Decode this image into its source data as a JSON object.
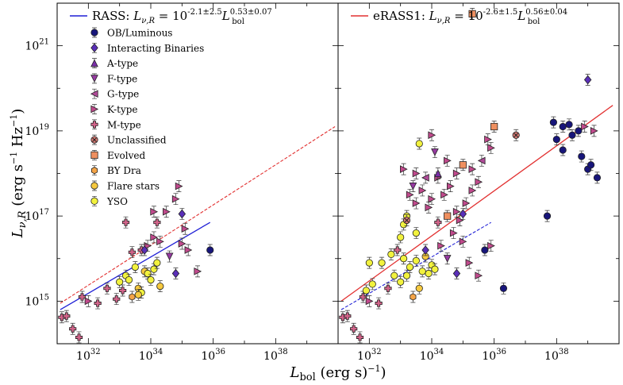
{
  "chart_data": {
    "type": "scatter",
    "xlabel": "L_bol (erg s^-1)",
    "ylabel": "L_ν,R (erg s^-1 Hz^-1)",
    "xscale": "log",
    "yscale": "log",
    "xlim": [
      1e+31,
      1e+40
    ],
    "ylim": [
      100000000000000.0,
      1e+22
    ],
    "x_ticks": [
      "10^32",
      "10^34",
      "10^36",
      "10^38"
    ],
    "y_ticks": [
      "10^15",
      "10^17",
      "10^19",
      "10^21"
    ],
    "legend_placement": "upper-left",
    "categories": [
      {
        "name": "OB/Luminous",
        "marker": "circle",
        "color": "#17157a"
      },
      {
        "name": "Interacting Binaries",
        "marker": "diamond",
        "color": "#5a2fb8"
      },
      {
        "name": "A-type",
        "marker": "triangle-up",
        "color": "#7a2ea8"
      },
      {
        "name": "F-type",
        "marker": "triangle-down",
        "color": "#963aa0"
      },
      {
        "name": "G-type",
        "marker": "triangle-left",
        "color": "#b04a98"
      },
      {
        "name": "K-type",
        "marker": "triangle-right",
        "color": "#c04a8c"
      },
      {
        "name": "M-type",
        "marker": "plus",
        "color": "#d2648a"
      },
      {
        "name": "Unclassified",
        "marker": "x",
        "color": "#d87a74"
      },
      {
        "name": "Evolved",
        "marker": "square",
        "color": "#ef9060"
      },
      {
        "name": "BY Dra",
        "marker": "hexagon",
        "color": "#f4a447"
      },
      {
        "name": "Flare stars",
        "marker": "circle",
        "color": "#f6c93f"
      },
      {
        "name": "YSO",
        "marker": "circle",
        "color": "#f2f23e"
      }
    ],
    "panels": [
      {
        "label": "RASS",
        "fit_equation": "RASS: L_ν,R = 10^(-2.1±2.5) L_bol^(0.53±0.07)",
        "fit_color": "#1f1fd6",
        "fit_line": [
          [
            31.1,
            14.8
          ],
          [
            35.9,
            16.85
          ]
        ],
        "comparison_line": [
          [
            31.1,
            14.95
          ],
          [
            39.9,
            19.1
          ]
        ],
        "comparison_color": "#e23030",
        "points": [
          {
            "x": 31.15,
            "y": 14.62,
            "c": 6
          },
          {
            "x": 31.3,
            "y": 14.65,
            "c": 6
          },
          {
            "x": 31.5,
            "y": 14.35,
            "c": 6
          },
          {
            "x": 31.7,
            "y": 14.15,
            "c": 6
          },
          {
            "x": 32.5,
            "y": 13.85,
            "c": 6
          },
          {
            "x": 31.8,
            "y": 15.1,
            "c": 6
          },
          {
            "x": 32.0,
            "y": 15.0,
            "c": 5
          },
          {
            "x": 32.3,
            "y": 14.95,
            "c": 6
          },
          {
            "x": 32.6,
            "y": 15.3,
            "c": 6
          },
          {
            "x": 33.0,
            "y": 15.45,
            "c": 11
          },
          {
            "x": 32.9,
            "y": 15.05,
            "c": 6
          },
          {
            "x": 33.1,
            "y": 15.25,
            "c": 6
          },
          {
            "x": 33.2,
            "y": 15.6,
            "c": 11
          },
          {
            "x": 33.3,
            "y": 15.5,
            "c": 11
          },
          {
            "x": 33.4,
            "y": 15.1,
            "c": 9
          },
          {
            "x": 33.6,
            "y": 15.3,
            "c": 10
          },
          {
            "x": 33.7,
            "y": 15.2,
            "c": 11
          },
          {
            "x": 33.5,
            "y": 15.8,
            "c": 11
          },
          {
            "x": 33.8,
            "y": 15.7,
            "c": 10
          },
          {
            "x": 33.9,
            "y": 15.65,
            "c": 11
          },
          {
            "x": 34.0,
            "y": 15.5,
            "c": 11
          },
          {
            "x": 34.1,
            "y": 15.75,
            "c": 11
          },
          {
            "x": 34.2,
            "y": 15.9,
            "c": 11
          },
          {
            "x": 34.3,
            "y": 15.35,
            "c": 10
          },
          {
            "x": 33.6,
            "y": 15.15,
            "c": 10
          },
          {
            "x": 33.4,
            "y": 16.15,
            "c": 6
          },
          {
            "x": 33.7,
            "y": 16.2,
            "c": 6
          },
          {
            "x": 33.9,
            "y": 16.3,
            "c": 5
          },
          {
            "x": 34.1,
            "y": 16.5,
            "c": 5
          },
          {
            "x": 34.3,
            "y": 16.4,
            "c": 5
          },
          {
            "x": 35.0,
            "y": 16.35,
            "c": 5
          },
          {
            "x": 35.2,
            "y": 16.2,
            "c": 5
          },
          {
            "x": 34.6,
            "y": 16.05,
            "c": 3
          },
          {
            "x": 33.2,
            "y": 16.85,
            "c": 6
          },
          {
            "x": 34.2,
            "y": 16.85,
            "c": 6
          },
          {
            "x": 33.8,
            "y": 16.2,
            "c": 1
          },
          {
            "x": 34.8,
            "y": 15.65,
            "c": 1
          },
          {
            "x": 35.1,
            "y": 16.7,
            "c": 5
          },
          {
            "x": 35.9,
            "y": 16.2,
            "c": 0
          },
          {
            "x": 35.5,
            "y": 15.7,
            "c": 5
          },
          {
            "x": 34.5,
            "y": 17.1,
            "c": 5
          },
          {
            "x": 34.8,
            "y": 17.4,
            "c": 5
          },
          {
            "x": 35.0,
            "y": 17.05,
            "c": 1
          },
          {
            "x": 34.9,
            "y": 17.7,
            "c": 5
          },
          {
            "x": 34.1,
            "y": 17.1,
            "c": 5
          }
        ]
      },
      {
        "label": "eRASS1",
        "fit_equation": "eRASS1: L_ν,R = 10^(-2.6±1.5) L_bol^(0.56±0.04)",
        "fit_color": "#e23030",
        "fit_line": [
          [
            31.1,
            15.0
          ],
          [
            39.8,
            19.6
          ]
        ],
        "comparison_line": [
          [
            31.1,
            14.8
          ],
          [
            35.9,
            16.85
          ]
        ],
        "comparison_color": "#1f1fd6",
        "points": [
          {
            "x": 31.15,
            "y": 14.62,
            "c": 6
          },
          {
            "x": 31.3,
            "y": 14.65,
            "c": 6
          },
          {
            "x": 31.5,
            "y": 14.35,
            "c": 6
          },
          {
            "x": 31.7,
            "y": 14.15,
            "c": 6
          },
          {
            "x": 32.5,
            "y": 13.85,
            "c": 6
          },
          {
            "x": 31.8,
            "y": 15.1,
            "c": 6
          },
          {
            "x": 32.0,
            "y": 15.0,
            "c": 5
          },
          {
            "x": 32.3,
            "y": 14.95,
            "c": 6
          },
          {
            "x": 32.6,
            "y": 15.3,
            "c": 6
          },
          {
            "x": 31.9,
            "y": 15.25,
            "c": 11
          },
          {
            "x": 32.1,
            "y": 15.4,
            "c": 11
          },
          {
            "x": 32.0,
            "y": 15.9,
            "c": 11
          },
          {
            "x": 32.4,
            "y": 15.9,
            "c": 11
          },
          {
            "x": 32.8,
            "y": 15.6,
            "c": 11
          },
          {
            "x": 32.7,
            "y": 16.1,
            "c": 11
          },
          {
            "x": 33.0,
            "y": 15.45,
            "c": 11
          },
          {
            "x": 33.1,
            "y": 16.0,
            "c": 11
          },
          {
            "x": 33.2,
            "y": 15.6,
            "c": 11
          },
          {
            "x": 33.3,
            "y": 15.8,
            "c": 11
          },
          {
            "x": 33.4,
            "y": 15.1,
            "c": 9
          },
          {
            "x": 33.5,
            "y": 15.95,
            "c": 11
          },
          {
            "x": 33.6,
            "y": 15.3,
            "c": 10
          },
          {
            "x": 33.7,
            "y": 15.7,
            "c": 11
          },
          {
            "x": 33.8,
            "y": 16.05,
            "c": 10
          },
          {
            "x": 33.9,
            "y": 15.65,
            "c": 11
          },
          {
            "x": 34.0,
            "y": 15.85,
            "c": 11
          },
          {
            "x": 34.1,
            "y": 15.75,
            "c": 11
          },
          {
            "x": 33.0,
            "y": 16.5,
            "c": 11
          },
          {
            "x": 33.1,
            "y": 16.8,
            "c": 11
          },
          {
            "x": 33.2,
            "y": 17.0,
            "c": 11
          },
          {
            "x": 33.5,
            "y": 16.6,
            "c": 11
          },
          {
            "x": 33.6,
            "y": 18.7,
            "c": 11
          },
          {
            "x": 32.9,
            "y": 16.2,
            "c": 6
          },
          {
            "x": 33.3,
            "y": 17.5,
            "c": 5
          },
          {
            "x": 33.5,
            "y": 17.3,
            "c": 5
          },
          {
            "x": 33.7,
            "y": 17.6,
            "c": 5
          },
          {
            "x": 33.9,
            "y": 17.2,
            "c": 5
          },
          {
            "x": 34.0,
            "y": 17.4,
            "c": 5
          },
          {
            "x": 34.2,
            "y": 17.9,
            "c": 5
          },
          {
            "x": 34.4,
            "y": 17.5,
            "c": 5
          },
          {
            "x": 34.6,
            "y": 17.7,
            "c": 5
          },
          {
            "x": 34.8,
            "y": 17.1,
            "c": 5
          },
          {
            "x": 34.3,
            "y": 16.3,
            "c": 5
          },
          {
            "x": 34.5,
            "y": 16.0,
            "c": 3
          },
          {
            "x": 34.7,
            "y": 16.6,
            "c": 5
          },
          {
            "x": 34.9,
            "y": 16.9,
            "c": 5
          },
          {
            "x": 35.1,
            "y": 17.3,
            "c": 5
          },
          {
            "x": 35.3,
            "y": 17.6,
            "c": 5
          },
          {
            "x": 35.5,
            "y": 17.8,
            "c": 5
          },
          {
            "x": 35.0,
            "y": 16.4,
            "c": 5
          },
          {
            "x": 35.2,
            "y": 15.9,
            "c": 5
          },
          {
            "x": 35.5,
            "y": 15.6,
            "c": 5
          },
          {
            "x": 35.7,
            "y": 16.2,
            "c": 0
          },
          {
            "x": 35.9,
            "y": 16.3,
            "c": 5
          },
          {
            "x": 34.2,
            "y": 18.0,
            "c": 2
          },
          {
            "x": 34.5,
            "y": 18.3,
            "c": 5
          },
          {
            "x": 34.8,
            "y": 18.0,
            "c": 5
          },
          {
            "x": 34.1,
            "y": 18.5,
            "c": 3
          },
          {
            "x": 35.0,
            "y": 18.2,
            "c": 8
          },
          {
            "x": 35.3,
            "y": 18.1,
            "c": 5
          },
          {
            "x": 35.6,
            "y": 18.3,
            "c": 4
          },
          {
            "x": 35.9,
            "y": 18.6,
            "c": 5
          },
          {
            "x": 35.8,
            "y": 18.8,
            "c": 5
          },
          {
            "x": 34.0,
            "y": 18.9,
            "c": 5
          },
          {
            "x": 33.8,
            "y": 17.9,
            "c": 4
          },
          {
            "x": 33.5,
            "y": 18.0,
            "c": 5
          },
          {
            "x": 33.1,
            "y": 18.1,
            "c": 5
          },
          {
            "x": 33.2,
            "y": 16.9,
            "c": 7
          },
          {
            "x": 33.4,
            "y": 17.7,
            "c": 3
          },
          {
            "x": 33.8,
            "y": 16.2,
            "c": 1
          },
          {
            "x": 34.2,
            "y": 16.85,
            "c": 6
          },
          {
            "x": 34.5,
            "y": 17.0,
            "c": 8
          },
          {
            "x": 34.8,
            "y": 15.65,
            "c": 1
          },
          {
            "x": 35.0,
            "y": 17.05,
            "c": 1
          },
          {
            "x": 35.3,
            "y": 21.75,
            "c": 8
          },
          {
            "x": 36.0,
            "y": 19.1,
            "c": 8
          },
          {
            "x": 36.3,
            "y": 15.3,
            "c": 0
          },
          {
            "x": 36.7,
            "y": 18.9,
            "c": 7
          },
          {
            "x": 37.7,
            "y": 17.0,
            "c": 0
          },
          {
            "x": 37.9,
            "y": 19.2,
            "c": 0
          },
          {
            "x": 38.0,
            "y": 18.8,
            "c": 0
          },
          {
            "x": 38.2,
            "y": 19.1,
            "c": 0
          },
          {
            "x": 38.4,
            "y": 19.15,
            "c": 0
          },
          {
            "x": 38.5,
            "y": 18.9,
            "c": 0
          },
          {
            "x": 38.7,
            "y": 19.0,
            "c": 0
          },
          {
            "x": 38.8,
            "y": 18.4,
            "c": 0
          },
          {
            "x": 39.0,
            "y": 18.1,
            "c": 0
          },
          {
            "x": 39.1,
            "y": 18.2,
            "c": 0
          },
          {
            "x": 39.2,
            "y": 19.0,
            "c": 5
          },
          {
            "x": 39.3,
            "y": 17.9,
            "c": 0
          },
          {
            "x": 39.0,
            "y": 20.2,
            "c": 1
          },
          {
            "x": 38.2,
            "y": 18.55,
            "c": 0
          },
          {
            "x": 38.9,
            "y": 19.1,
            "c": 5
          }
        ]
      }
    ]
  }
}
